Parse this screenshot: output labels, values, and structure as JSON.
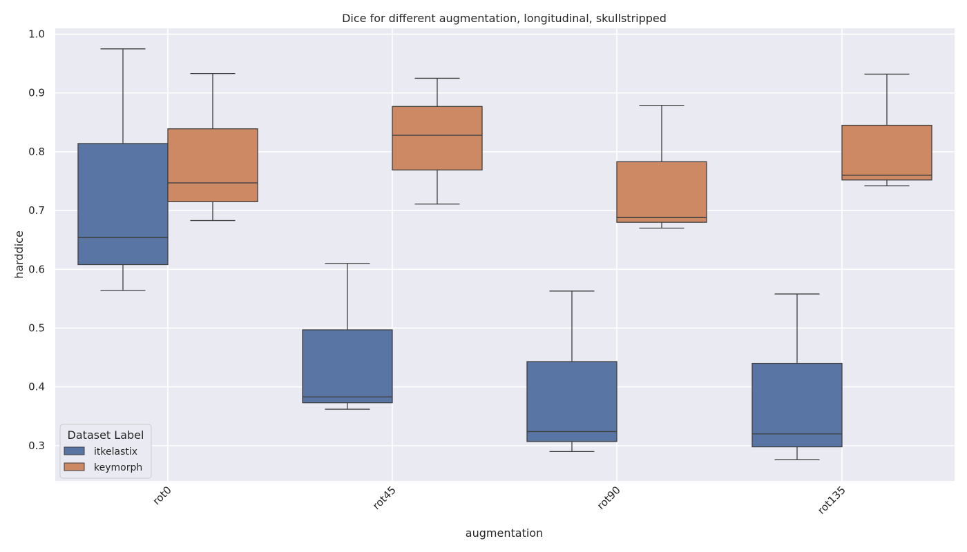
{
  "chart_data": {
    "type": "box",
    "title": "Dice for different augmentation, longitudinal, skullstripped",
    "xlabel": "augmentation",
    "ylabel": "harddice",
    "categories": [
      "rot0",
      "rot45",
      "rot90",
      "rot135"
    ],
    "ylim": [
      0.24,
      1.01
    ],
    "yticks": [
      "0.3",
      "0.4",
      "0.5",
      "0.6",
      "0.7",
      "0.8",
      "0.9",
      "1.0"
    ],
    "grid": true,
    "legend": {
      "title": "Dataset Label",
      "position": "lower-left"
    },
    "series": [
      {
        "name": "itkelastix",
        "color": "#5975a4",
        "boxes": [
          {
            "whislo": 0.564,
            "q1": 0.608,
            "med": 0.654,
            "q3": 0.814,
            "whishi": 0.975
          },
          {
            "whislo": 0.362,
            "q1": 0.373,
            "med": 0.383,
            "q3": 0.497,
            "whishi": 0.61
          },
          {
            "whislo": 0.29,
            "q1": 0.307,
            "med": 0.324,
            "q3": 0.443,
            "whishi": 0.563
          },
          {
            "whislo": 0.276,
            "q1": 0.298,
            "med": 0.32,
            "q3": 0.44,
            "whishi": 0.558
          }
        ]
      },
      {
        "name": "keymorph",
        "color": "#cc8963",
        "boxes": [
          {
            "whislo": 0.683,
            "q1": 0.715,
            "med": 0.747,
            "q3": 0.839,
            "whishi": 0.933
          },
          {
            "whislo": 0.711,
            "q1": 0.769,
            "med": 0.828,
            "q3": 0.877,
            "whishi": 0.925
          },
          {
            "whislo": 0.67,
            "q1": 0.68,
            "med": 0.688,
            "q3": 0.783,
            "whishi": 0.879
          },
          {
            "whislo": 0.742,
            "q1": 0.752,
            "med": 0.76,
            "q3": 0.845,
            "whishi": 0.932
          }
        ]
      }
    ]
  }
}
